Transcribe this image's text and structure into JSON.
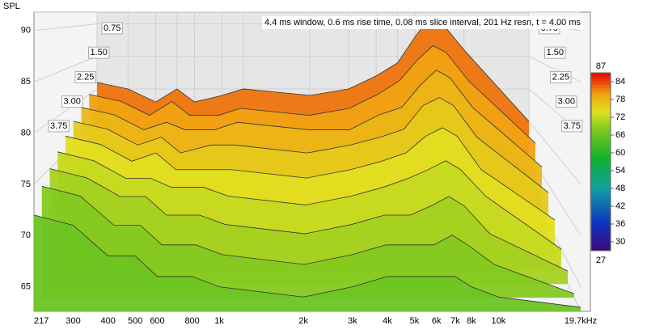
{
  "chart_data": {
    "type": "waterfall",
    "annotation": "4.4 ms window, 0.6 ms rise time, 0.08 ms slice interval, 201 Hz resn, t = 4.00 ms",
    "ylabel": "SPL",
    "log_x": true,
    "xlim": [
      217,
      19700
    ],
    "xticks": [
      217,
      300,
      400,
      500,
      600,
      800,
      {
        "value": 1000,
        "label": "1k"
      },
      {
        "value": 2000,
        "label": "2k"
      },
      {
        "value": 3000,
        "label": "3k"
      },
      {
        "value": 4000,
        "label": "4k"
      },
      {
        "value": 5000,
        "label": "5k"
      },
      {
        "value": 6000,
        "label": "6k"
      },
      {
        "value": 7000,
        "label": "7k"
      },
      {
        "value": 8000,
        "label": "8k"
      },
      {
        "value": 10000,
        "label": "10k"
      },
      {
        "value": 19700,
        "label": "19.7kHz"
      }
    ],
    "ylim": [
      62.6,
      91.8
    ],
    "yticks": [
      65,
      70,
      75,
      80,
      85,
      90
    ],
    "zlim": [
      0,
      4.0
    ],
    "zticks": [
      0.75,
      {
        "value": 1.5,
        "label": "1.50"
      },
      2.25,
      {
        "value": 3.0,
        "label": "3.00"
      },
      3.75
    ],
    "x": [
      217,
      300,
      400,
      500,
      600,
      800,
      1000,
      2000,
      3000,
      4000,
      5000,
      6000,
      7000,
      8000,
      10000,
      19700
    ],
    "series": [
      {
        "t": 0,
        "values": [
          81,
          80,
          78,
          80,
          78,
          79,
          80,
          79,
          80,
          82,
          84,
          88,
          91,
          90,
          86,
          75
        ]
      },
      {
        "t": 0.5,
        "values": [
          80,
          79,
          77,
          79,
          77,
          77,
          78,
          77,
          78,
          80,
          82,
          85,
          87,
          86,
          82,
          73
        ]
      },
      {
        "t": 1.0,
        "values": [
          79,
          78,
          76,
          77,
          76,
          76,
          77,
          76,
          76,
          78,
          79,
          82,
          84,
          83,
          79,
          71
        ]
      },
      {
        "t": 1.5,
        "values": [
          78,
          77,
          75,
          76,
          74,
          75,
          75,
          74,
          75,
          76,
          77,
          80,
          81,
          80,
          76,
          69
        ]
      },
      {
        "t": 2.0,
        "values": [
          77,
          76,
          74,
          75,
          73,
          73,
          73,
          72,
          73,
          74,
          75,
          77,
          78,
          77,
          73,
          67
        ]
      },
      {
        "t": 2.5,
        "values": [
          76,
          75,
          73,
          73,
          72,
          72,
          71,
          70,
          71,
          72,
          73,
          74,
          75,
          74,
          71,
          65
        ]
      },
      {
        "t": 3.0,
        "values": [
          75,
          74,
          72,
          72,
          70,
          70,
          69,
          68,
          69,
          70,
          70,
          71,
          72,
          71,
          68,
          64
        ]
      },
      {
        "t": 3.5,
        "values": [
          74,
          73,
          70,
          70,
          68,
          68,
          67,
          66,
          67,
          68,
          68,
          68,
          69,
          68,
          66,
          63
        ]
      },
      {
        "t": 4.0,
        "values": [
          72,
          71,
          68,
          68,
          66,
          66,
          65,
          64,
          65,
          66,
          66,
          66,
          66,
          65,
          64,
          63
        ]
      }
    ],
    "colorbar": {
      "lim": [
        27,
        87
      ],
      "ticks": [
        30,
        36,
        42,
        48,
        54,
        60,
        66,
        72,
        78,
        84
      ],
      "stops": [
        {
          "value": 27,
          "color": "#3c0a78"
        },
        {
          "value": 36,
          "color": "#1030c0"
        },
        {
          "value": 48,
          "color": "#10a0a0"
        },
        {
          "value": 58,
          "color": "#10b030"
        },
        {
          "value": 68,
          "color": "#80c820"
        },
        {
          "value": 74,
          "color": "#e0e020"
        },
        {
          "value": 80,
          "color": "#f0a010"
        },
        {
          "value": 87,
          "color": "#e80000"
        }
      ]
    }
  }
}
